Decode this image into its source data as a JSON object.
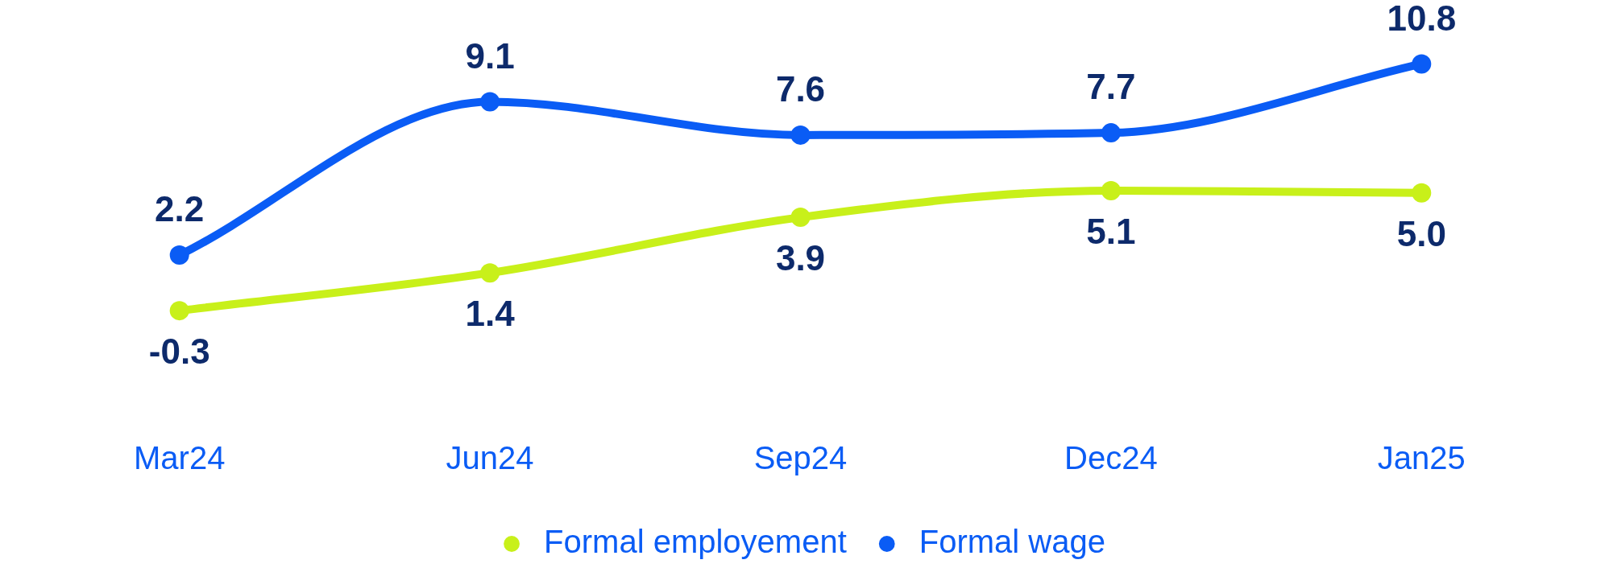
{
  "chart_data": {
    "type": "line",
    "categories": [
      "Mar24",
      "Jun24",
      "Sep24",
      "Dec24",
      "Jan25"
    ],
    "series": [
      {
        "name": "Formal employement",
        "color": "#c8f01a",
        "values": [
          -0.3,
          1.4,
          3.9,
          5.1,
          5.0
        ],
        "value_labels": [
          "-0.3",
          "1.4",
          "3.9",
          "5.1",
          "5.0"
        ]
      },
      {
        "name": "Formal wage",
        "color": "#0a5cf5",
        "values": [
          2.2,
          9.1,
          7.6,
          7.7,
          10.8
        ],
        "value_labels": [
          "2.2",
          "9.1",
          "7.6",
          "7.7",
          "10.8"
        ]
      }
    ],
    "legend": "bottom",
    "marker": "circle",
    "grid": false,
    "tick_labels": "x"
  }
}
